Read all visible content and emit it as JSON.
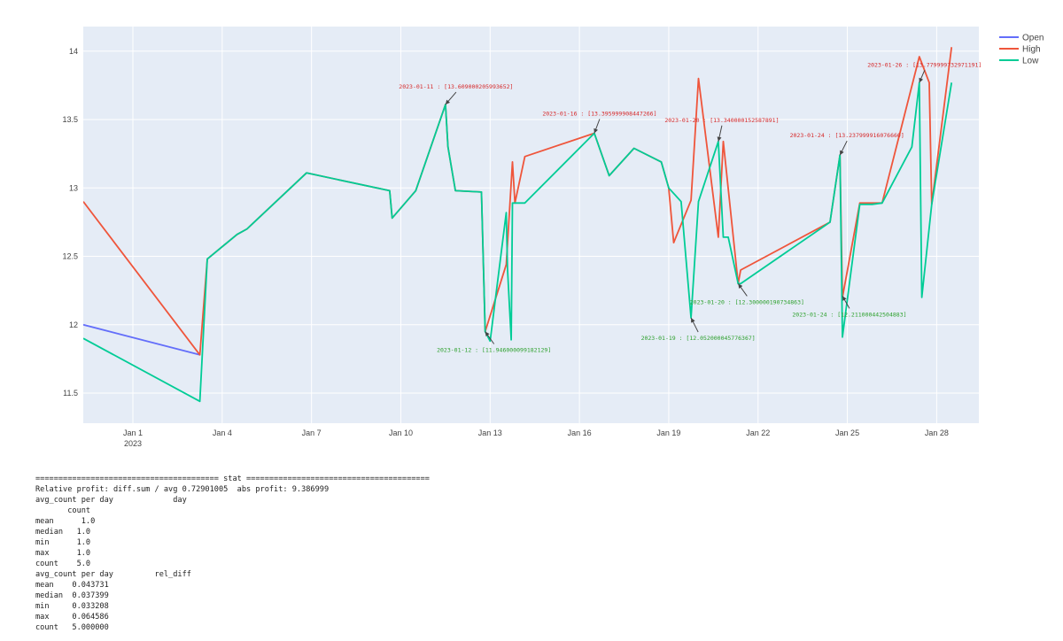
{
  "chart_data": {
    "type": "line",
    "x_ticks": [
      {
        "date": "2023-01-01",
        "label": "Jan 1",
        "sub": "2023"
      },
      {
        "date": "2023-01-04",
        "label": "Jan 4",
        "sub": ""
      },
      {
        "date": "2023-01-07",
        "label": "Jan 7",
        "sub": ""
      },
      {
        "date": "2023-01-10",
        "label": "Jan 10",
        "sub": ""
      },
      {
        "date": "2023-01-13",
        "label": "Jan 13",
        "sub": ""
      },
      {
        "date": "2023-01-16",
        "label": "Jan 16",
        "sub": ""
      },
      {
        "date": "2023-01-19",
        "label": "Jan 19",
        "sub": ""
      },
      {
        "date": "2023-01-22",
        "label": "Jan 22",
        "sub": ""
      },
      {
        "date": "2023-01-25",
        "label": "Jan 25",
        "sub": ""
      },
      {
        "date": "2023-01-28",
        "label": "Jan 28",
        "sub": ""
      }
    ],
    "y_ticks": [
      11.5,
      12,
      12.5,
      13,
      13.5,
      14
    ],
    "xlim": [
      "2022-12-30T08:00",
      "2023-01-29T10:00"
    ],
    "ylim": [
      11.28,
      14.18
    ],
    "grid": true,
    "legend_position": "top-right",
    "series": [
      {
        "name": "Open",
        "color": "#636efa",
        "x": [
          "2022-12-30T08:00",
          "2023-01-03T06:00"
        ],
        "y": [
          12.0,
          11.78
        ]
      },
      {
        "name": "High",
        "color": "#ef553b",
        "x": [
          "2022-12-30T08:00",
          "2023-01-03T06:00",
          "2023-01-03T12:00",
          "2023-01-04T12:00",
          "2023-01-04T20:00",
          "2023-01-06T20:00",
          "2023-01-09T15:00",
          "2023-01-09T17:00",
          "2023-01-10T12:00",
          "2023-01-11T12:00",
          "2023-01-11T14:00",
          "2023-01-11T20:00",
          "2023-01-12T17:00",
          "2023-01-12T20:00",
          "2023-01-13T13:00",
          "2023-01-13T18:00",
          "2023-01-13T20:00",
          "2023-01-14T04:00",
          "2023-01-16T12:00",
          "2023-01-17T00:00",
          "2023-01-17T20:00",
          "2023-01-18T18:00",
          "2023-01-19T00:00",
          "2023-01-19T04:00",
          "2023-01-19T18:00",
          "2023-01-20T00:00",
          "2023-01-20T16:00",
          "2023-01-20T20:00",
          "2023-01-21T08:00",
          "2023-01-21T10:00",
          "2023-01-24T10:00",
          "2023-01-24T18:00",
          "2023-01-24T20:00",
          "2023-01-25T10:00",
          "2023-01-25T20:00",
          "2023-01-26T04:00",
          "2023-01-27T10:00",
          "2023-01-27T18:00",
          "2023-01-27T20:00",
          "2023-01-28T12:00"
        ],
        "y": [
          12.9,
          11.78,
          12.48,
          12.66,
          12.7,
          13.11,
          12.98,
          12.78,
          12.98,
          13.61,
          13.3,
          12.98,
          12.97,
          11.95,
          12.44,
          13.19,
          12.89,
          13.23,
          13.4,
          13.09,
          13.29,
          13.19,
          13.0,
          12.6,
          12.91,
          13.8,
          12.64,
          13.34,
          12.3,
          12.4,
          12.75,
          13.24,
          12.2,
          12.89,
          12.89,
          12.89,
          13.96,
          13.77,
          12.88,
          14.03
        ]
      },
      {
        "name": "Low",
        "color": "#00cc96",
        "x": [
          "2022-12-30T08:00",
          "2023-01-03T06:00",
          "2023-01-03T12:00",
          "2023-01-04T12:00",
          "2023-01-04T20:00",
          "2023-01-06T20:00",
          "2023-01-09T15:00",
          "2023-01-09T17:00",
          "2023-01-10T12:00",
          "2023-01-11T12:00",
          "2023-01-11T14:00",
          "2023-01-11T20:00",
          "2023-01-12T17:00",
          "2023-01-12T20:00",
          "2023-01-13T00:00",
          "2023-01-13T13:00",
          "2023-01-13T14:00",
          "2023-01-13T17:00",
          "2023-01-13T18:00",
          "2023-01-14T04:00",
          "2023-01-16T12:00",
          "2023-01-17T00:00",
          "2023-01-17T20:00",
          "2023-01-18T18:00",
          "2023-01-19T00:00",
          "2023-01-19T10:00",
          "2023-01-19T18:00",
          "2023-01-20T00:00",
          "2023-01-20T16:00",
          "2023-01-20T20:00",
          "2023-01-21T00:00",
          "2023-01-21T08:00",
          "2023-01-21T10:00",
          "2023-01-24T10:00",
          "2023-01-24T18:00",
          "2023-01-24T20:00",
          "2023-01-25T10:00",
          "2023-01-25T20:00",
          "2023-01-26T04:00",
          "2023-01-27T04:00",
          "2023-01-27T10:00",
          "2023-01-27T12:00",
          "2023-01-27T20:00",
          "2023-01-28T12:00"
        ],
        "y": [
          11.9,
          11.44,
          12.48,
          12.66,
          12.7,
          13.11,
          12.98,
          12.78,
          12.98,
          13.61,
          13.3,
          12.98,
          12.97,
          11.95,
          11.88,
          12.82,
          12.41,
          11.89,
          12.89,
          12.89,
          13.4,
          13.09,
          13.29,
          13.19,
          13.0,
          12.9,
          12.05,
          12.9,
          13.34,
          12.64,
          12.64,
          12.3,
          12.3,
          12.75,
          13.24,
          11.91,
          12.88,
          12.88,
          12.89,
          13.3,
          13.77,
          12.2,
          12.88,
          13.77
        ]
      }
    ],
    "annotations": [
      {
        "text": "2023-01-11 : [13.609000205993652]",
        "x": "2023-01-11T12:00",
        "y": 13.61,
        "color": "#d62728",
        "ax": 12,
        "ay": -14
      },
      {
        "text": "2023-01-12 : [11.946000099182129]",
        "x": "2023-01-12T20:00",
        "y": 11.95,
        "color": "#2ca02c",
        "ax": 10,
        "ay": 14
      },
      {
        "text": "2023-01-16 : [13.395999908447266]",
        "x": "2023-01-16T12:00",
        "y": 13.4,
        "color": "#d62728",
        "ax": 6,
        "ay": -16
      },
      {
        "text": "2023-01-20 : [13.340000152587891]",
        "x": "2023-01-20T16:00",
        "y": 13.34,
        "color": "#d62728",
        "ax": 4,
        "ay": -18
      },
      {
        "text": "2023-01-19 : [12.052000045776367]",
        "x": "2023-01-19T18:00",
        "y": 12.05,
        "color": "#2ca02c",
        "ax": 8,
        "ay": 16
      },
      {
        "text": "2023-01-20 : [12.300000190734863]",
        "x": "2023-01-21T08:00",
        "y": 12.3,
        "color": "#2ca02c",
        "ax": 10,
        "ay": 14
      },
      {
        "text": "2023-01-24 : [13.237999916076660]",
        "x": "2023-01-24T18:00",
        "y": 13.24,
        "color": "#d62728",
        "ax": 8,
        "ay": -16
      },
      {
        "text": "2023-01-24 : [12.211000442504883]",
        "x": "2023-01-24T20:00",
        "y": 12.21,
        "color": "#2ca02c",
        "ax": 8,
        "ay": 14
      },
      {
        "text": "2023-01-26 : [13.779999732971191]",
        "x": "2023-01-27T10:00",
        "y": 13.77,
        "color": "#d62728",
        "ax": 6,
        "ay": -14
      }
    ]
  },
  "stats": {
    "lines": [
      "======================================== stat ========================================",
      "Relative profit: diff.sum / avg 0.72901005  abs profit: 9.386999",
      "avg_count per day             day",
      "       count",
      "mean      1.0",
      "median   1.0",
      "min      1.0",
      "max      1.0",
      "count    5.0",
      "avg_count per day         rel_diff",
      "mean    0.043731",
      "median  0.037399",
      "min     0.033208",
      "max     0.064586",
      "count   5.000000"
    ]
  }
}
